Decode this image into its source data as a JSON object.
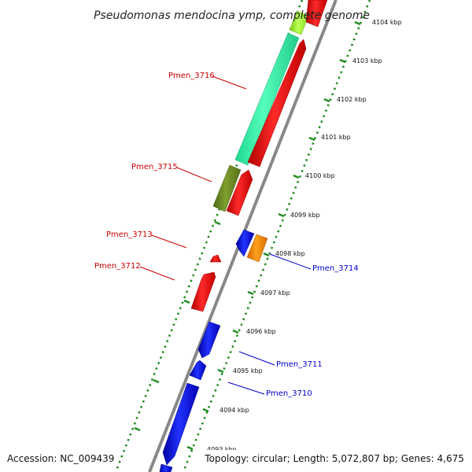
{
  "title": "Pseudomonas mendocina ymp, complete genome",
  "footer": {
    "accession": "Accession: NC_009439",
    "topology": "Topology: circular; Length: 5,072,807 bp; Genes: 4,675"
  },
  "ticks": [
    "4093 kbp",
    "4094 kbp",
    "4095 kbp",
    "4096 kbp",
    "4097 kbp",
    "4098 kbp",
    "4099 kbp",
    "4100 kbp",
    "4101 kbp",
    "4102 kbp",
    "4103 kbp",
    "4104 kbp"
  ],
  "gene_labels": [
    "Pmen_3716",
    "Pmen_3715",
    "Pmen_3713",
    "Pmen_3712",
    "Pmen_3714",
    "Pmen_3711",
    "Pmen_3710"
  ],
  "colors": {
    "red": "#ff0000",
    "blue": "#0000ee",
    "aquamarine": "#33ffaa",
    "olive": "#6b8e23",
    "orange": "#ff8c00",
    "lime": "#99ee33",
    "backbone": "#888888",
    "dots": "#228b22"
  }
}
